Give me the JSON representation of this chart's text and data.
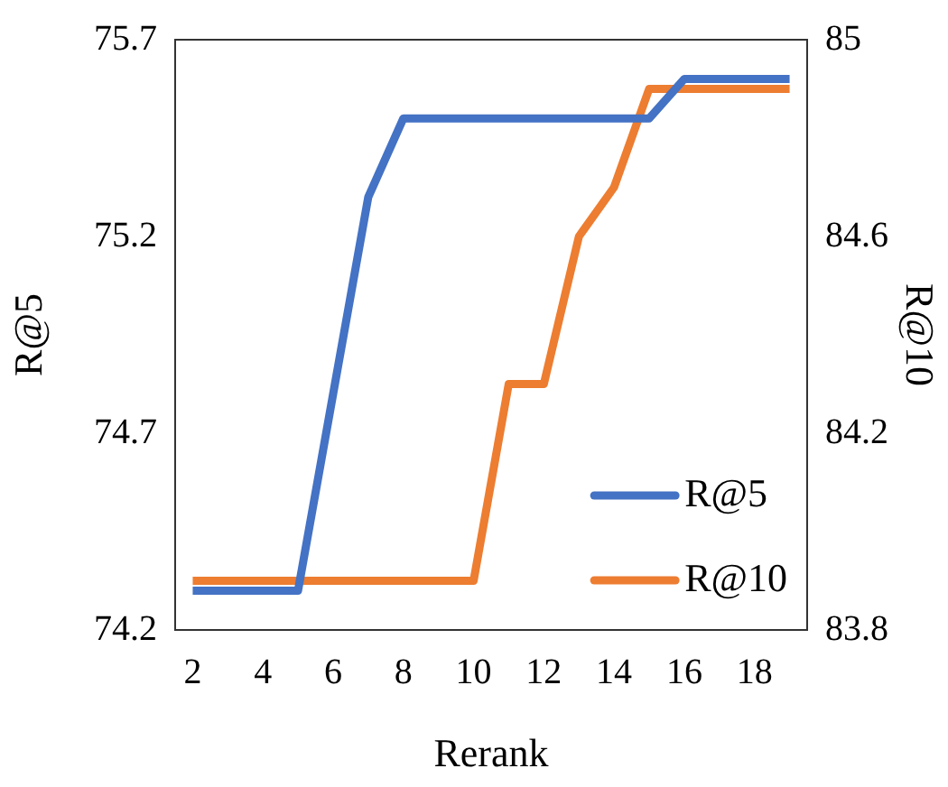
{
  "chart_data": {
    "type": "line",
    "xlabel": "Rerank",
    "ylabel": "R@5",
    "y2label": "R@10",
    "x": [
      2,
      3,
      4,
      5,
      6,
      7,
      8,
      9,
      10,
      11,
      12,
      13,
      14,
      15,
      16,
      17,
      18,
      19
    ],
    "series": [
      {
        "name": "R@5",
        "color": "#4472c4",
        "values": [
          74.3,
          74.3,
          74.3,
          74.3,
          74.8,
          75.3,
          75.5,
          75.5,
          75.5,
          75.5,
          75.5,
          75.5,
          75.5,
          75.5,
          75.6,
          75.6,
          75.6,
          75.6
        ]
      },
      {
        "name": "R@10",
        "color": "#ed7d31",
        "axis": "y2",
        "values": [
          83.9,
          83.9,
          83.9,
          83.9,
          83.9,
          83.9,
          83.9,
          83.9,
          83.9,
          84.3,
          84.3,
          84.6,
          84.7,
          84.9,
          84.9,
          84.9,
          84.9,
          84.9
        ]
      }
    ],
    "xlim": [
      1.5,
      19.5
    ],
    "xticks": [
      2,
      4,
      6,
      8,
      10,
      12,
      14,
      16,
      18
    ],
    "ylim": [
      74.2,
      75.7
    ],
    "yticks": [
      74.2,
      74.7,
      75.2,
      75.7
    ],
    "y2lim": [
      83.8,
      85
    ],
    "y2ticks": [
      83.8,
      84.2,
      84.6,
      85
    ],
    "grid": false,
    "legend": "bottom right",
    "marker": "none",
    "line_style": "solid"
  }
}
